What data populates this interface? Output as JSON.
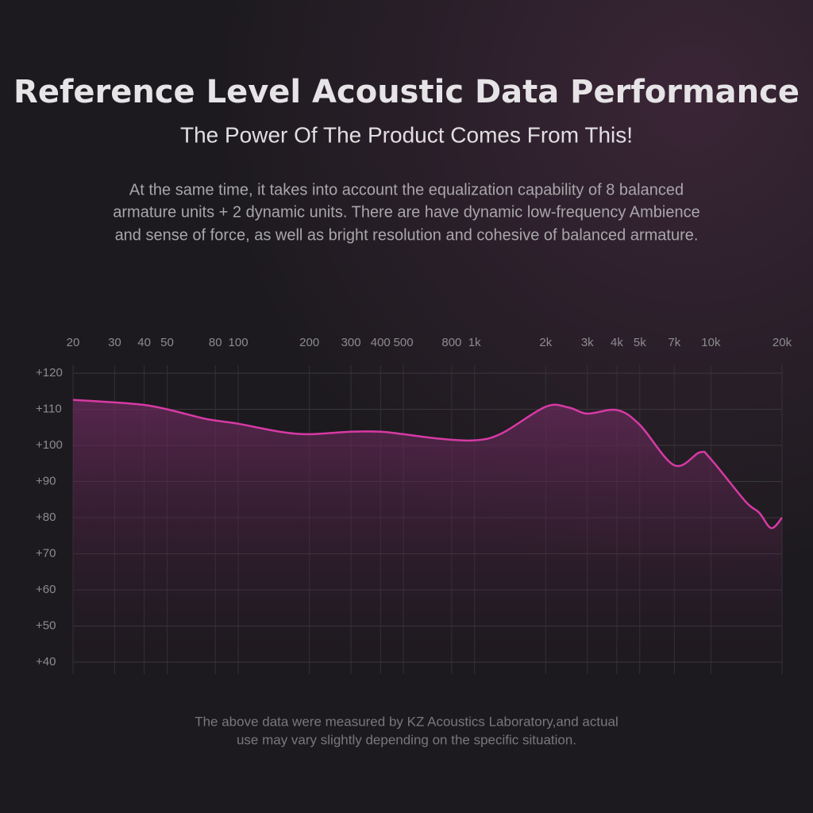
{
  "chart_data": {
    "type": "line",
    "title": "Reference Level Acoustic Data Performance",
    "subtitle": "The Power Of The Product Comes From This!",
    "description": [
      "At the same time, it takes into account the equalization capability of 8 balanced",
      "armature units + 2 dynamic units. There are have dynamic low-frequency Ambience",
      "and sense of force, as well as bright resolution and cohesive of balanced armature."
    ],
    "footnote": [
      "The above data were measured by KZ Acoustics Laboratory,and actual",
      "use may vary slightly depending on the specific situation."
    ],
    "x": [
      20,
      30,
      40,
      50,
      70,
      80,
      100,
      150,
      200,
      300,
      400,
      500,
      700,
      1000,
      1300,
      2000,
      2500,
      3000,
      4000,
      5000,
      7000,
      9000,
      10000,
      14000,
      16000,
      18000,
      20000
    ],
    "values": [
      112.6,
      111.9,
      111.2,
      110,
      107.6,
      106.9,
      106,
      103.8,
      103.1,
      103.8,
      103.8,
      103.1,
      101.9,
      101.4,
      103.3,
      110.7,
      110.5,
      108.8,
      109.8,
      105.7,
      94.5,
      98.1,
      96.2,
      84.5,
      81.4,
      77.1,
      80
    ],
    "color": "#d63aa4",
    "xscale": "log",
    "xlim": [
      20,
      20000
    ],
    "xticks": [
      20,
      30,
      40,
      50,
      80,
      100,
      200,
      300,
      400,
      500,
      800,
      {
        "value": 1000,
        "label": "1k"
      },
      {
        "value": 2000,
        "label": "2k"
      },
      {
        "value": 3000,
        "label": "3k"
      },
      {
        "value": 4000,
        "label": "4k"
      },
      {
        "value": 5000,
        "label": "5k"
      },
      {
        "value": 7000,
        "label": "7k"
      },
      {
        "value": 10000,
        "label": "10k"
      },
      {
        "value": 20000,
        "label": "20k"
      }
    ],
    "ylim": [
      40,
      120
    ],
    "yticks": [
      {
        "value": 120,
        "label": "+120"
      },
      {
        "value": 110,
        "label": "+110"
      },
      {
        "value": 100,
        "label": "+100"
      },
      {
        "value": 90,
        "label": "+90"
      },
      {
        "value": 80,
        "label": "+80"
      },
      {
        "value": 70,
        "label": "+70"
      },
      {
        "value": 60,
        "label": "+60"
      },
      {
        "value": 50,
        "label": "+50"
      },
      {
        "value": 40,
        "label": "+40"
      }
    ],
    "grid": true
  }
}
